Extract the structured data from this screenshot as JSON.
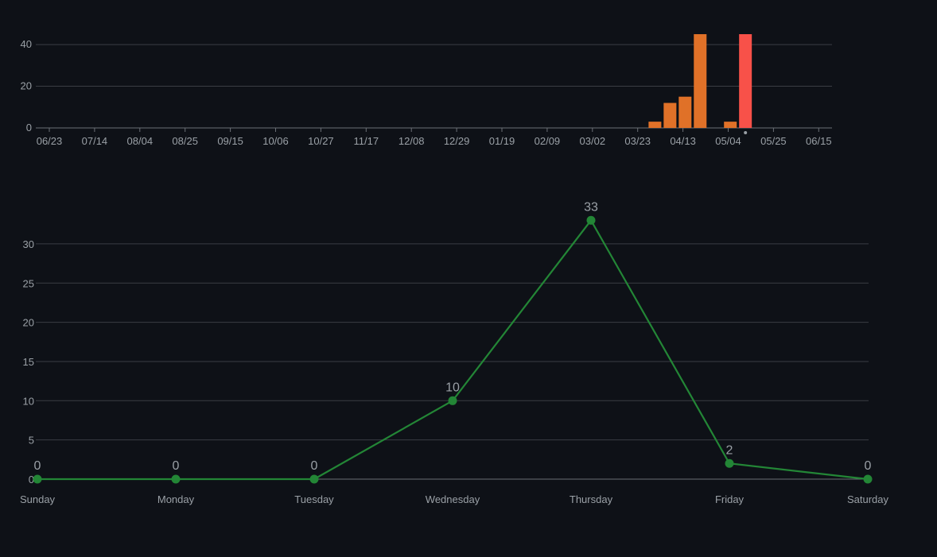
{
  "colors": {
    "background": "#0e1117",
    "grid": "#3a3d44",
    "axis": "#6b6f76",
    "text": "#9aa0a6",
    "bar": "#e07128",
    "bar_highlight": "#f85149",
    "line": "#238636",
    "marker_dot": "#9aa0a6"
  },
  "chart_data": [
    {
      "type": "bar",
      "title": "",
      "xlabel": "",
      "ylabel": "",
      "x_ticks": [
        "06/23",
        "07/14",
        "08/04",
        "08/25",
        "09/15",
        "10/06",
        "10/27",
        "11/17",
        "12/08",
        "12/29",
        "01/19",
        "02/09",
        "03/02",
        "03/23",
        "04/13",
        "05/04",
        "05/25",
        "06/15"
      ],
      "y_ticks": [
        "0",
        "20",
        "40"
      ],
      "ylim": [
        0,
        45
      ],
      "grid": true,
      "bars": [
        {
          "week": "03/30",
          "value": 3,
          "highlight": false
        },
        {
          "week": "04/06",
          "value": 12,
          "highlight": false
        },
        {
          "week": "04/13",
          "value": 15,
          "highlight": false
        },
        {
          "week": "04/20",
          "value": 45,
          "highlight": false
        },
        {
          "week": "05/04",
          "value": 3,
          "highlight": false
        },
        {
          "week": "05/11",
          "value": 45,
          "highlight": true
        }
      ],
      "current_week_marker": "05/11"
    },
    {
      "type": "line",
      "title": "",
      "xlabel": "",
      "ylabel": "",
      "categories": [
        "Sunday",
        "Monday",
        "Tuesday",
        "Wednesday",
        "Thursday",
        "Friday",
        "Saturday"
      ],
      "values": [
        0,
        0,
        0,
        10,
        33,
        2,
        0
      ],
      "data_labels": [
        "0",
        "0",
        "0",
        "10",
        "33",
        "2",
        "0"
      ],
      "y_ticks": [
        "0",
        "5",
        "10",
        "15",
        "20",
        "25",
        "30"
      ],
      "ylim": [
        0,
        33
      ],
      "grid": true
    }
  ]
}
